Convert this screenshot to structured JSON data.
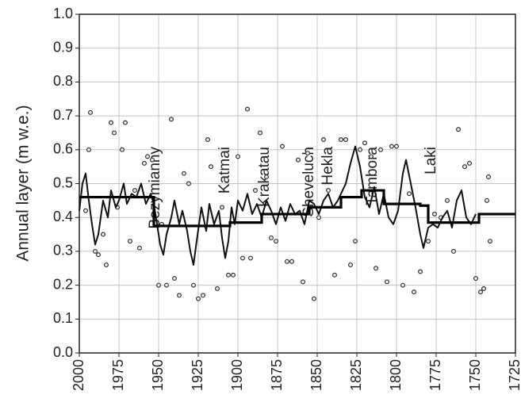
{
  "chart_data": {
    "type": "line",
    "ylabel": "Annual layer (m w.e.)",
    "xlim": [
      2000,
      1725
    ],
    "xticks": [
      2000,
      1975,
      1950,
      1925,
      1900,
      1875,
      1850,
      1825,
      1800,
      1775,
      1750,
      1725
    ],
    "ylim": [
      0,
      1
    ],
    "yticks": [
      {
        "value": 0,
        "label": "0.0"
      },
      0.1,
      0.2,
      0.3,
      0.4,
      0.5,
      0.6,
      0.7,
      0.8,
      0.9,
      {
        "value": 1,
        "label": "1.0"
      }
    ],
    "grid": true,
    "annotations": [
      {
        "text": "Bezymianny",
        "x": 1952
      },
      {
        "text": "Katmai",
        "x": 1908
      },
      {
        "text": "Krakatau",
        "x": 1883
      },
      {
        "text": "Sheveluch",
        "x": 1855
      },
      {
        "text": "Hekla",
        "x": 1843
      },
      {
        "text": "Tambora",
        "x": 1815
      },
      {
        "text": "Laki",
        "x": 1778
      }
    ],
    "series": [
      {
        "mode": "markers",
        "color": "#333333",
        "x": [
          1996,
          1994,
          1993,
          1990,
          1988,
          1985,
          1983,
          1980,
          1978,
          1976,
          1973,
          1971,
          1968,
          1965,
          1962,
          1959,
          1957,
          1954,
          1950,
          1948,
          1945,
          1942,
          1940,
          1937,
          1934,
          1931,
          1928,
          1925,
          1922,
          1919,
          1917,
          1913,
          1910,
          1906,
          1903,
          1900,
          1897,
          1894,
          1892,
          1889,
          1886,
          1882,
          1879,
          1876,
          1872,
          1869,
          1866,
          1862,
          1859,
          1856,
          1852,
          1849,
          1846,
          1843,
          1839,
          1835,
          1832,
          1829,
          1826,
          1823,
          1820,
          1816,
          1813,
          1810,
          1806,
          1803,
          1800,
          1796,
          1792,
          1789,
          1785,
          1780,
          1776,
          1772,
          1768,
          1764,
          1761,
          1757,
          1754,
          1750,
          1747,
          1745,
          1743,
          1742,
          1741
        ],
        "values": [
          0.42,
          0.6,
          0.71,
          0.3,
          0.29,
          0.35,
          0.26,
          0.68,
          0.65,
          0.43,
          0.6,
          0.68,
          0.33,
          0.48,
          0.31,
          0.56,
          0.58,
          0.57,
          0.2,
          0.38,
          0.2,
          0.69,
          0.22,
          0.17,
          0.53,
          0.5,
          0.2,
          0.16,
          0.17,
          0.63,
          0.55,
          0.19,
          0.43,
          0.23,
          0.23,
          0.58,
          0.28,
          0.72,
          0.28,
          0.48,
          0.65,
          0.52,
          0.34,
          0.33,
          0.61,
          0.27,
          0.27,
          0.57,
          0.21,
          0.59,
          0.16,
          0.4,
          0.63,
          0.48,
          0.23,
          0.63,
          0.63,
          0.26,
          0.33,
          0.6,
          0.62,
          0.58,
          0.25,
          0.6,
          0.21,
          0.61,
          0.61,
          0.2,
          0.47,
          0.18,
          0.24,
          0.33,
          0.41,
          0.4,
          0.45,
          0.3,
          0.66,
          0.55,
          0.56,
          0.22,
          0.18,
          0.19,
          0.45,
          0.52,
          0.33
        ]
      },
      {
        "mode": "line",
        "color": "#111111",
        "x": [
          2000,
          1998,
          1996,
          1994,
          1992,
          1990,
          1988,
          1985,
          1982,
          1980,
          1977,
          1975,
          1972,
          1970,
          1967,
          1964,
          1961,
          1958,
          1955,
          1953,
          1951,
          1949,
          1947,
          1945,
          1942,
          1940,
          1937,
          1935,
          1932,
          1930,
          1928,
          1926,
          1923,
          1920,
          1918,
          1915,
          1912,
          1910,
          1908,
          1906,
          1904,
          1902,
          1900,
          1897,
          1894,
          1891,
          1888,
          1885,
          1882,
          1879,
          1876,
          1873,
          1870,
          1867,
          1864,
          1861,
          1858,
          1855,
          1852,
          1849,
          1846,
          1843,
          1840,
          1837,
          1835,
          1832,
          1829,
          1826,
          1823,
          1820,
          1817,
          1814,
          1811,
          1808,
          1805,
          1802,
          1799,
          1796,
          1794,
          1791,
          1788,
          1785,
          1783,
          1780,
          1777,
          1774,
          1771,
          1768,
          1765,
          1762,
          1759,
          1756,
          1753,
          1750
        ],
        "values": [
          0.42,
          0.5,
          0.53,
          0.45,
          0.38,
          0.32,
          0.35,
          0.45,
          0.4,
          0.48,
          0.43,
          0.45,
          0.5,
          0.44,
          0.47,
          0.46,
          0.5,
          0.44,
          0.47,
          0.44,
          0.38,
          0.32,
          0.29,
          0.35,
          0.4,
          0.45,
          0.38,
          0.42,
          0.36,
          0.3,
          0.26,
          0.33,
          0.43,
          0.36,
          0.44,
          0.38,
          0.42,
          0.34,
          0.28,
          0.33,
          0.43,
          0.38,
          0.45,
          0.42,
          0.47,
          0.41,
          0.44,
          0.4,
          0.45,
          0.42,
          0.38,
          0.43,
          0.39,
          0.44,
          0.41,
          0.42,
          0.38,
          0.45,
          0.44,
          0.41,
          0.45,
          0.47,
          0.43,
          0.45,
          0.47,
          0.5,
          0.56,
          0.61,
          0.55,
          0.46,
          0.43,
          0.49,
          0.41,
          0.47,
          0.4,
          0.38,
          0.42,
          0.53,
          0.57,
          0.5,
          0.43,
          0.35,
          0.31,
          0.37,
          0.38,
          0.37,
          0.4,
          0.42,
          0.37,
          0.45,
          0.48,
          0.4,
          0.38,
          0.41
        ]
      },
      {
        "mode": "steps",
        "color": "#000000",
        "x": [
          2000,
          1953,
          1905,
          1885,
          1855,
          1835,
          1822,
          1808,
          1785,
          1780,
          1748,
          1725
        ],
        "values": [
          0.46,
          0.375,
          0.385,
          0.41,
          0.43,
          0.46,
          0.48,
          0.44,
          0.435,
          0.385,
          0.41,
          0.41
        ]
      }
    ]
  }
}
